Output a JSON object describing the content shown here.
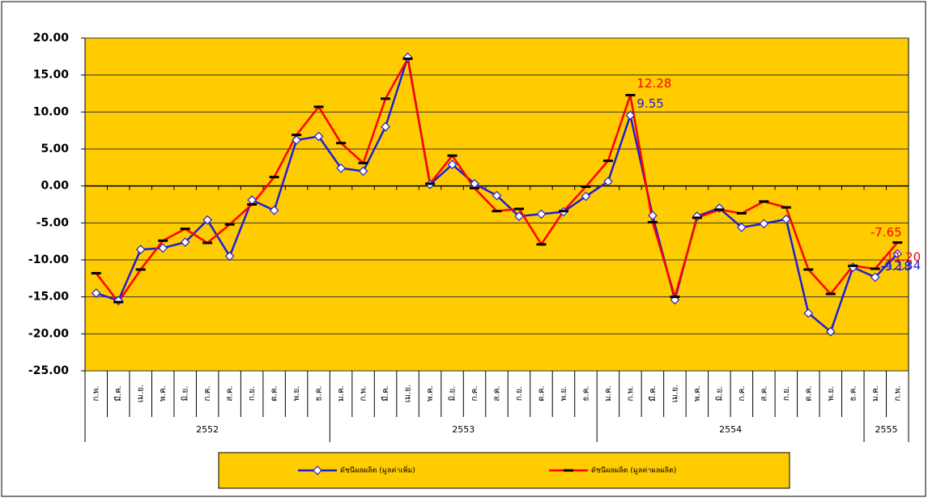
{
  "chart_data": {
    "type": "line",
    "categories": [
      "ก.พ.",
      "มี.ค.",
      "เม.ย.",
      "พ.ค.",
      "มิ.ย.",
      "ก.ค.",
      "ส.ค.",
      "ก.ย.",
      "ต.ค.",
      "พ.ย.",
      "ธ.ค.",
      "ม.ค.",
      "ก.พ.",
      "มี.ค.",
      "เม.ย.",
      "พ.ค.",
      "มิ.ย.",
      "ก.ค.",
      "ส.ค.",
      "ก.ย.",
      "ต.ค.",
      "พ.ย.",
      "ธ.ค.",
      "ม.ค.",
      "ก.พ.",
      "มี.ค.",
      "เม.ย.",
      "พ.ค.",
      "มิ.ย.",
      "ก.ค.",
      "ส.ค.",
      "ก.ย.",
      "ต.ค.",
      "พ.ย.",
      "ธ.ค.",
      "ม.ค.",
      "ก.พ."
    ],
    "year_groups": [
      {
        "label": "2552",
        "size": 11
      },
      {
        "label": "2553",
        "size": 12
      },
      {
        "label": "2554",
        "size": 12
      },
      {
        "label": "2555",
        "size": 2
      }
    ],
    "series": [
      {
        "name": "ดัชนีผลผลิต (มูลค่าเพิ่ม)",
        "color": "#1f1fd6",
        "marker": "diamond",
        "values": [
          -14.5,
          -15.5,
          -8.6,
          -8.4,
          -7.6,
          -4.6,
          -9.5,
          -1.9,
          -3.3,
          6.2,
          6.7,
          2.4,
          2.0,
          8.0,
          17.4,
          0.2,
          2.9,
          0.3,
          -1.3,
          -4.1,
          -3.8,
          -3.5,
          -1.4,
          0.6,
          9.55,
          -4.0,
          -15.4,
          -4.1,
          -3.0,
          -5.6,
          -5.1,
          -4.5,
          -17.2,
          -19.7,
          -11.0,
          -12.34,
          -9.18
        ],
        "value_labels": [
          null,
          null,
          null,
          null,
          null,
          null,
          null,
          null,
          null,
          null,
          null,
          null,
          null,
          null,
          null,
          null,
          null,
          null,
          null,
          null,
          null,
          null,
          null,
          null,
          "9.55",
          null,
          null,
          null,
          null,
          null,
          null,
          null,
          null,
          null,
          null,
          "-12.34",
          "-9.18"
        ]
      },
      {
        "name": "ดัชนีผลผลิต (มูลค่าผลผลิต)",
        "color": "#ff0000",
        "marker": "dash",
        "values": [
          -11.8,
          -15.7,
          -11.3,
          -7.4,
          -5.8,
          -7.7,
          -5.2,
          -2.5,
          1.2,
          6.9,
          10.7,
          5.8,
          3.1,
          11.8,
          17.2,
          0.3,
          4.1,
          -0.3,
          -3.4,
          -3.1,
          -7.9,
          -3.4,
          -0.1,
          3.4,
          12.28,
          -4.9,
          -15.0,
          -4.3,
          -3.2,
          -3.7,
          -2.1,
          -2.9,
          -11.3,
          -14.6,
          -10.8,
          -11.2,
          -7.65
        ],
        "value_labels": [
          null,
          null,
          null,
          null,
          null,
          null,
          null,
          null,
          null,
          null,
          null,
          null,
          null,
          null,
          null,
          null,
          null,
          null,
          null,
          null,
          null,
          null,
          null,
          null,
          "12.28",
          null,
          null,
          null,
          null,
          null,
          null,
          null,
          null,
          null,
          null,
          "-11.20",
          "-7.65"
        ]
      }
    ],
    "ylim": [
      -25,
      20
    ],
    "yticks": [
      {
        "value": -25,
        "label": "-25.00"
      },
      {
        "value": -20,
        "label": "-20.00"
      },
      {
        "value": -15,
        "label": "-15.00"
      },
      {
        "value": -10,
        "label": "-10.00"
      },
      {
        "value": -5,
        "label": "-5.00"
      },
      {
        "value": 0,
        "label": "0.00"
      },
      {
        "value": 5,
        "label": "5.00"
      },
      {
        "value": 10,
        "label": "10.00"
      },
      {
        "value": 15,
        "label": "15.00"
      },
      {
        "value": 20,
        "label": "20.00"
      }
    ],
    "grid": true,
    "plot_color": "#ffcc00",
    "legend": "bottom"
  }
}
